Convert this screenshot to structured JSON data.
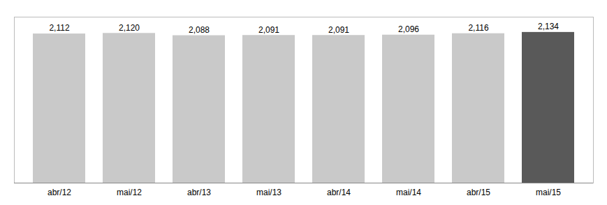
{
  "chart_data": {
    "type": "bar",
    "categories": [
      "abr/12",
      "mai/12",
      "abr/13",
      "mai/13",
      "abr/14",
      "mai/14",
      "abr/15",
      "mai/15"
    ],
    "values": [
      2112,
      2120,
      2088,
      2091,
      2091,
      2096,
      2116,
      2134
    ],
    "value_labels": [
      "2,112",
      "2,120",
      "2,088",
      "2,091",
      "2,091",
      "2,096",
      "2,116",
      "2,134"
    ],
    "colors": [
      "#c9c9c9",
      "#c9c9c9",
      "#c9c9c9",
      "#c9c9c9",
      "#c9c9c9",
      "#c9c9c9",
      "#c9c9c9",
      "#595959"
    ],
    "ylim": [
      0,
      2350
    ],
    "data_labels": true,
    "tick_labels": "x",
    "grid": false
  }
}
